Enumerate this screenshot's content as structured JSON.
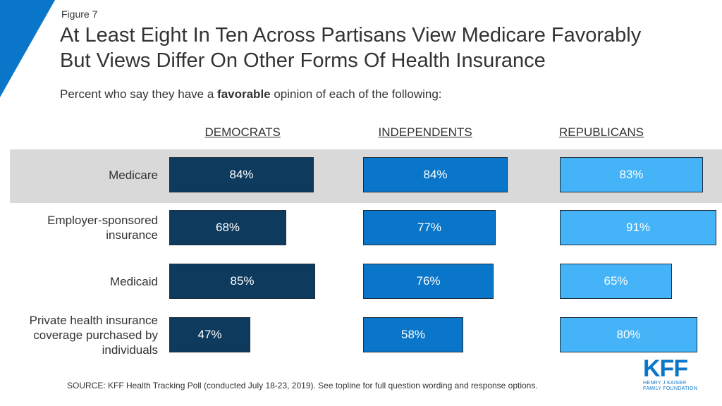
{
  "figure_label": "Figure 7",
  "title_line1": "At Least Eight In Ten Across Partisans View Medicare Favorably",
  "title_line2": "But Views Differ On Other Forms Of Health Insurance",
  "subtitle_pre": "Percent who say they have a ",
  "subtitle_bold": "favorable",
  "subtitle_post": " opinion of each of the following:",
  "source": "SOURCE: KFF Health Tracking Poll (conducted July 18-23, 2019). See topline for full question wording and response options.",
  "logo": {
    "text": "KFF",
    "line1": "HENRY J KAISER",
    "line2": "FAMILY FOUNDATION"
  },
  "colors": {
    "democrats": "#0e3a5e",
    "independents": "#0a76c9",
    "republicans": "#44b3f7",
    "highlight": "#d9d9d9",
    "corner": "#0a76c9"
  },
  "chart_data": {
    "type": "bar",
    "orientation": "horizontal",
    "highlighted_category": "Medicare",
    "categories": [
      "Medicare",
      "Employer-sponsored insurance",
      "Medicaid",
      "Private health insurance coverage purchased by individuals"
    ],
    "category_lines": [
      [
        "Medicare"
      ],
      [
        "Employer-sponsored",
        "insurance"
      ],
      [
        "Medicaid"
      ],
      [
        "Private health insurance",
        "coverage purchased by",
        "individuals"
      ]
    ],
    "series": [
      {
        "name": "DEMOCRATS",
        "values": [
          84,
          68,
          85,
          47
        ],
        "labels": [
          "84%",
          "68%",
          "85%",
          "47%"
        ]
      },
      {
        "name": "INDEPENDENTS",
        "values": [
          84,
          77,
          76,
          58
        ],
        "labels": [
          "84%",
          "77%",
          "76%",
          "58%"
        ]
      },
      {
        "name": "REPUBLICANS",
        "values": [
          83,
          91,
          65,
          80
        ],
        "labels": [
          "83%",
          "91%",
          "65%",
          "80%"
        ]
      }
    ],
    "unit": "%",
    "xlim": [
      0,
      100
    ]
  }
}
